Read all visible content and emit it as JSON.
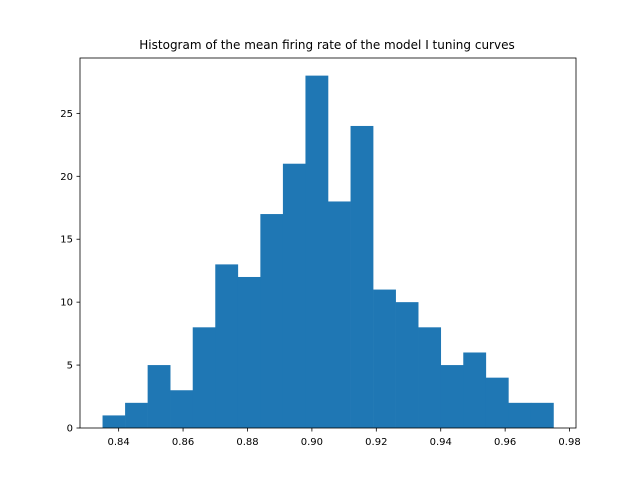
{
  "chart_data": {
    "type": "histogram",
    "title": "Histogram of the mean firing rate of the model I tuning curves",
    "xlabel": "",
    "ylabel": "",
    "bin_edges": [
      0.835,
      0.842,
      0.849,
      0.856,
      0.863,
      0.87,
      0.877,
      0.884,
      0.891,
      0.898,
      0.905,
      0.912,
      0.919,
      0.926,
      0.933,
      0.94,
      0.947,
      0.954,
      0.961,
      0.968,
      0.975
    ],
    "counts": [
      1,
      2,
      5,
      3,
      8,
      13,
      12,
      17,
      21,
      28,
      18,
      24,
      11,
      10,
      8,
      5,
      6,
      4,
      2,
      2
    ],
    "bar_color": "#1f77b4",
    "xlim": [
      0.828,
      0.982
    ],
    "ylim": [
      0,
      29.4
    ],
    "x_ticks": [
      0.84,
      0.86,
      0.88,
      0.9,
      0.92,
      0.94,
      0.96,
      0.98
    ],
    "x_tick_labels": [
      "0.84",
      "0.86",
      "0.88",
      "0.90",
      "0.92",
      "0.94",
      "0.96",
      "0.98"
    ],
    "y_ticks": [
      0,
      5,
      10,
      15,
      20,
      25
    ],
    "y_tick_labels": [
      "0",
      "5",
      "10",
      "15",
      "20",
      "25"
    ],
    "grid": false,
    "legend": "none"
  }
}
